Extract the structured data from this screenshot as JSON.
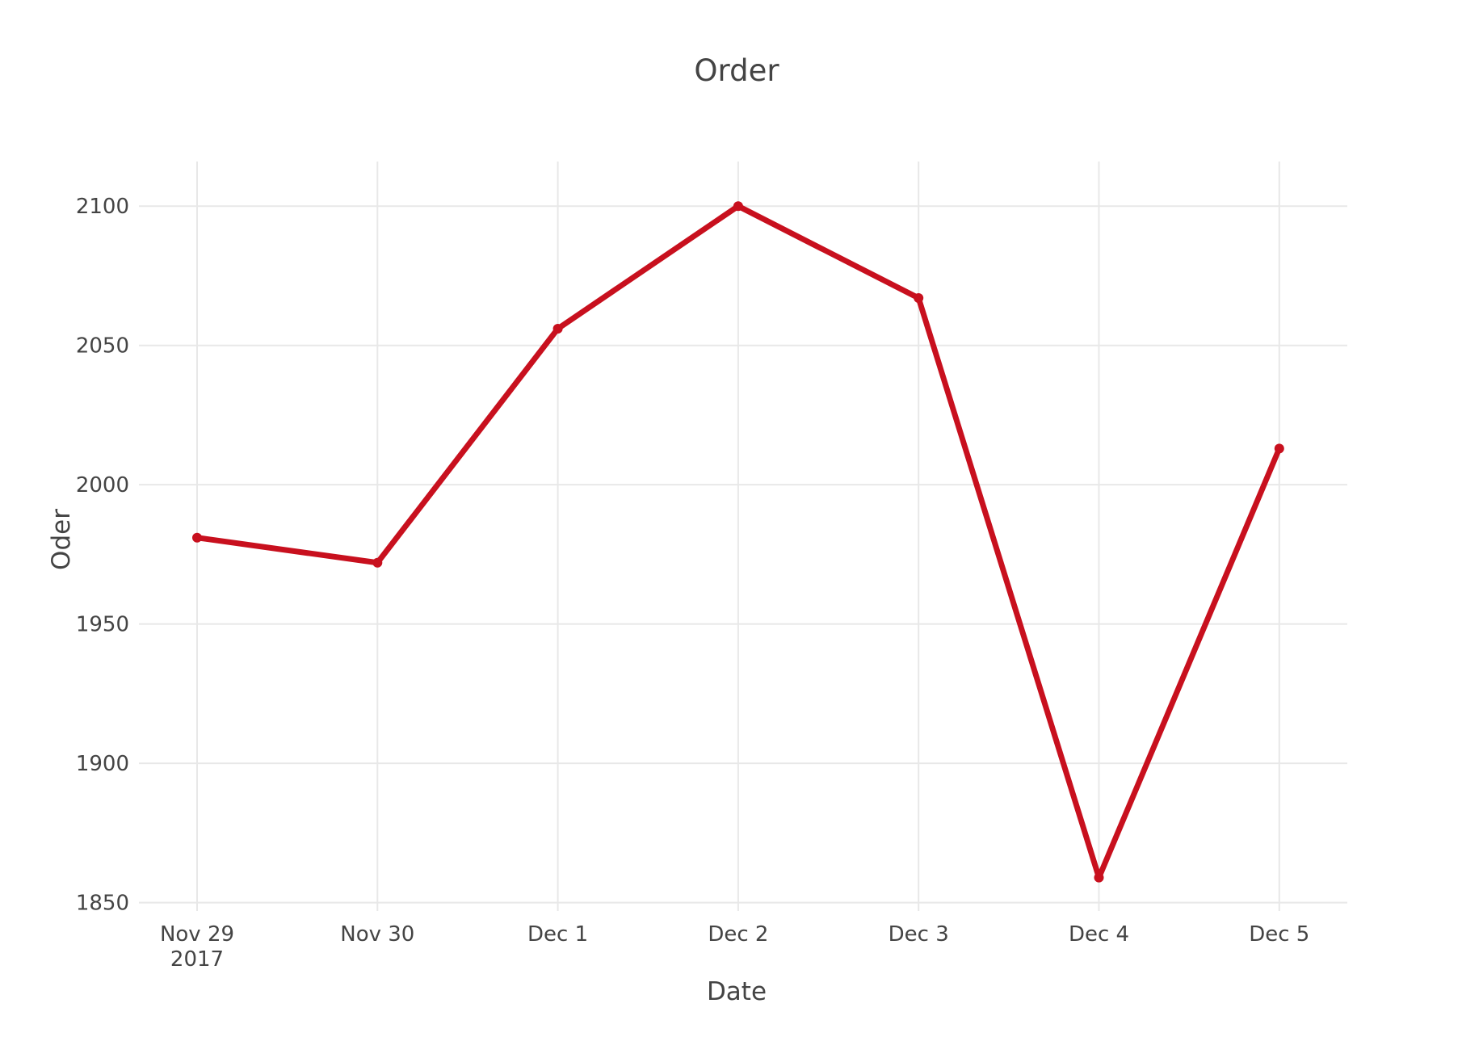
{
  "chart_data": {
    "type": "line",
    "title": "Order",
    "xlabel": "Date",
    "ylabel": "Oder",
    "x": [
      "2017-11-29",
      "2017-11-30",
      "2017-12-01",
      "2017-12-02",
      "2017-12-03",
      "2017-12-04",
      "2017-12-05"
    ],
    "x_tick_labels": [
      "Nov 29",
      "Nov 30",
      "Dec 1",
      "Dec 2",
      "Dec 3",
      "Dec 4",
      "Dec 5"
    ],
    "x_tick_year": "2017",
    "series": [
      {
        "values": [
          1981,
          1972,
          2056,
          2100,
          2067,
          1859,
          2013
        ],
        "color": "#c8101e"
      }
    ],
    "y_ticks": [
      1850,
      1900,
      1950,
      2000,
      2050,
      2100
    ],
    "ylim": [
      1847,
      2116
    ],
    "grid": true,
    "legend": "none"
  }
}
